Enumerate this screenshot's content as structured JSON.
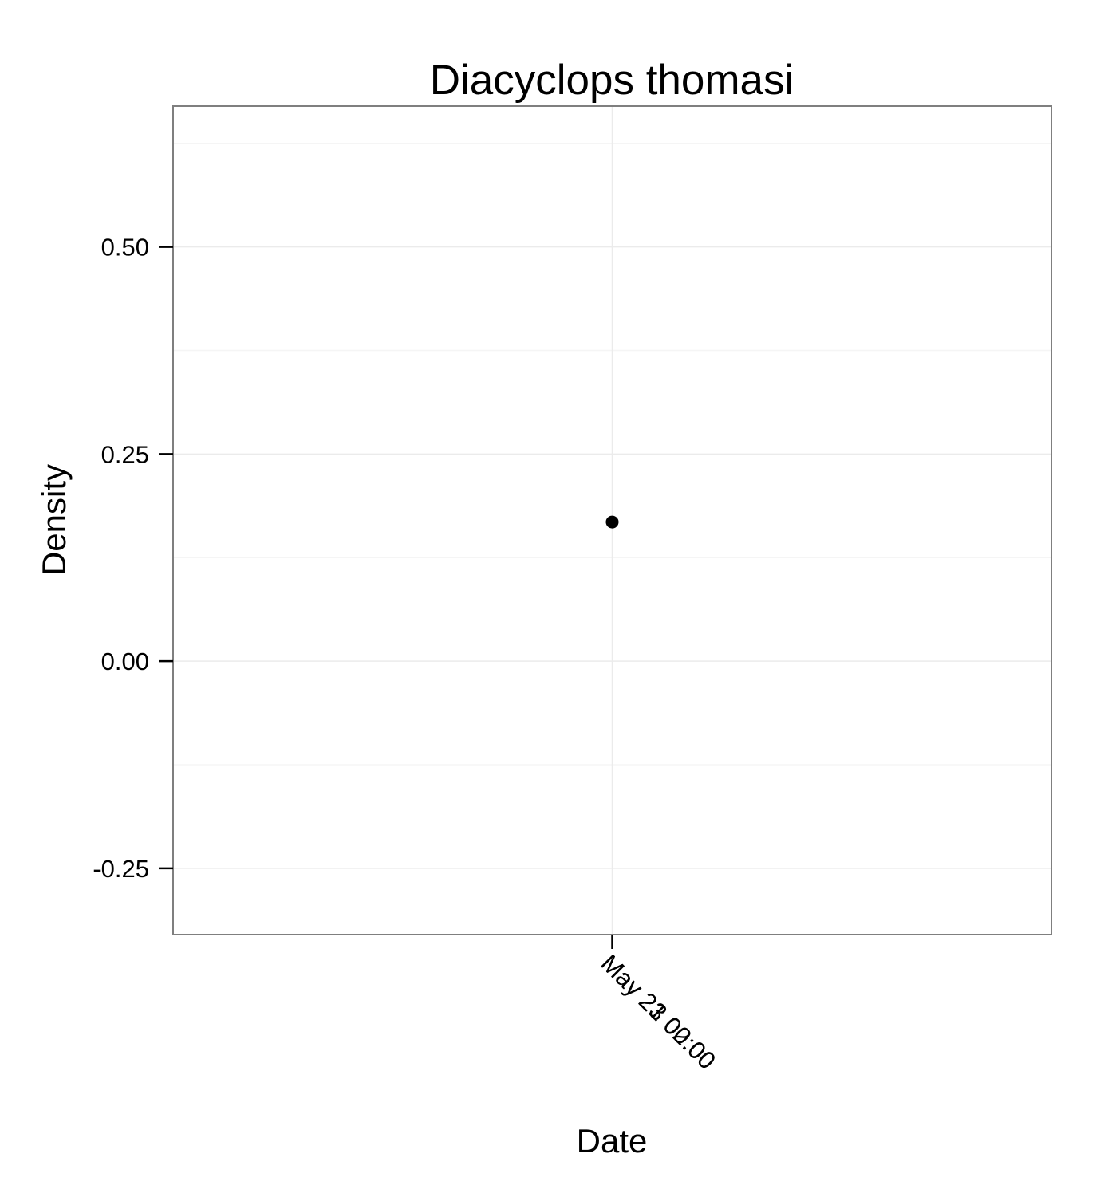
{
  "chart_data": {
    "type": "scatter",
    "title": "Diacyclops thomasi",
    "xlabel": "Date",
    "ylabel": "Density",
    "ylim": [
      -0.33,
      0.67
    ],
    "y_ticks": [
      -0.25,
      0.0,
      0.25,
      0.5
    ],
    "y_tick_labels": [
      "-0.25",
      "0.00",
      "0.25",
      "0.50"
    ],
    "x_tick_labels": [
      "May 21 00:00",
      "May 23 02:00"
    ],
    "points": [
      {
        "x": "May 23",
        "y": 0.168
      }
    ],
    "grid": true,
    "point_color": "#000000"
  }
}
